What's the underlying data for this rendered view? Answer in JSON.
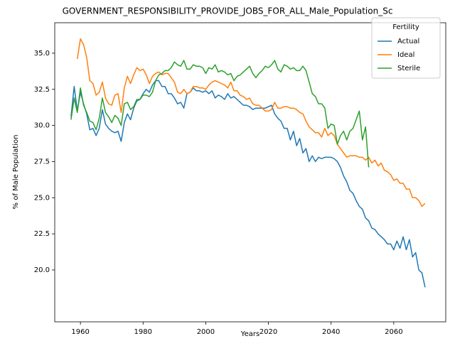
{
  "chart_data": {
    "type": "line",
    "title": "GOVERNMENT_RESPONSIBILITY_PROVIDE_JOBS_FOR_ALL_Male_Population_Sc",
    "xlabel": "Years",
    "ylabel": "% of Male Population",
    "legend_title": "Fertility",
    "legend": "upper right",
    "xlim": [
      1951.8,
      2076.6
    ],
    "ylim": [
      16.41,
      37.11
    ],
    "xticks": [
      1960,
      1980,
      2000,
      2020,
      2040,
      2060
    ],
    "yticks": [
      {
        "value": 20,
        "label": "20.0"
      },
      22.5,
      {
        "value": 25,
        "label": "25.0"
      },
      27.5,
      {
        "value": 30,
        "label": "30.0"
      },
      32.5,
      {
        "value": 35,
        "label": "35.0"
      }
    ],
    "series": [
      {
        "name": "Actual",
        "color": "#1f77b4",
        "x": [
          1957,
          1958,
          1959,
          1960,
          1961,
          1962,
          1963,
          1964,
          1965,
          1966,
          1967,
          1968,
          1969,
          1970,
          1971,
          1972,
          1973,
          1974,
          1975,
          1976,
          1977,
          1978,
          1979,
          1980,
          1981,
          1982,
          1983,
          1984,
          1985,
          1986,
          1987,
          1988,
          1989,
          1990,
          1991,
          1992,
          1993,
          1994,
          1995,
          1996,
          1997,
          1998,
          1999,
          2000,
          2001,
          2002,
          2003,
          2004,
          2005,
          2006,
          2007,
          2008,
          2009,
          2010,
          2011,
          2012,
          2013,
          2014,
          2015,
          2016,
          2017,
          2018,
          2019,
          2020,
          2021,
          2022,
          2023,
          2024,
          2025,
          2026,
          2027,
          2028,
          2029,
          2030,
          2031,
          2032,
          2033,
          2034,
          2035,
          2036,
          2037,
          2038,
          2039,
          2040,
          2041,
          2042,
          2043,
          2044,
          2045,
          2046,
          2047,
          2048,
          2049,
          2050,
          2051,
          2052,
          2053,
          2054,
          2055,
          2056,
          2057,
          2058,
          2059,
          2060,
          2061,
          2062,
          2063,
          2064,
          2065,
          2066,
          2067,
          2068,
          2069,
          2070
        ],
        "values": [
          30.6,
          32.7,
          31.0,
          32.3,
          31.5,
          30.8,
          29.7,
          29.8,
          29.3,
          29.8,
          31.1,
          30.1,
          29.8,
          29.6,
          29.5,
          29.6,
          28.9,
          30.2,
          30.8,
          30.4,
          31.2,
          31.7,
          31.8,
          32.2,
          32.5,
          32.3,
          32.8,
          33.1,
          33.1,
          32.7,
          32.7,
          32.2,
          32.2,
          31.9,
          31.5,
          31.6,
          31.2,
          32.2,
          32.3,
          32.6,
          32.4,
          32.4,
          32.3,
          32.4,
          32.2,
          32.4,
          31.9,
          32.1,
          32.0,
          31.8,
          32.2,
          31.9,
          32.0,
          31.8,
          31.6,
          31.4,
          31.4,
          31.3,
          31.1,
          31.2,
          31.2,
          31.2,
          31.2,
          31.3,
          31.4,
          30.8,
          30.5,
          30.3,
          29.8,
          29.8,
          29.0,
          29.6,
          28.6,
          29.1,
          28.1,
          28.4,
          27.5,
          27.9,
          27.5,
          27.8,
          27.7,
          27.8,
          27.8,
          27.8,
          27.7,
          27.5,
          27.1,
          26.5,
          26.1,
          25.5,
          25.3,
          24.8,
          24.4,
          24.2,
          23.6,
          23.4,
          22.9,
          22.8,
          22.5,
          22.3,
          22.1,
          21.8,
          21.8,
          21.4,
          22.0,
          21.5,
          22.3,
          21.4,
          22.1,
          20.9,
          21.2,
          20.0,
          19.8,
          18.8
        ]
      },
      {
        "name": "Ideal",
        "color": "#ff7f0e",
        "x": [
          1959,
          1960,
          1961,
          1962,
          1963,
          1964,
          1965,
          1966,
          1967,
          1968,
          1969,
          1970,
          1971,
          1972,
          1973,
          1974,
          1975,
          1976,
          1977,
          1978,
          1979,
          1980,
          1981,
          1982,
          1983,
          1984,
          1985,
          1986,
          1987,
          1988,
          1989,
          1990,
          1991,
          1992,
          1993,
          1994,
          1995,
          1996,
          1997,
          1998,
          1999,
          2000,
          2001,
          2002,
          2003,
          2004,
          2005,
          2006,
          2007,
          2008,
          2009,
          2010,
          2011,
          2012,
          2013,
          2014,
          2015,
          2016,
          2017,
          2018,
          2019,
          2020,
          2021,
          2022,
          2023,
          2024,
          2025,
          2026,
          2027,
          2028,
          2029,
          2030,
          2031,
          2032,
          2033,
          2034,
          2035,
          2036,
          2037,
          2038,
          2039,
          2040,
          2041,
          2042,
          2043,
          2044,
          2045,
          2046,
          2047,
          2048,
          2049,
          2050,
          2051,
          2052,
          2053,
          2054,
          2055,
          2056,
          2057,
          2058,
          2059,
          2060,
          2061,
          2062,
          2063,
          2064,
          2065,
          2066,
          2067,
          2068,
          2069,
          2070
        ],
        "values": [
          34.6,
          36.0,
          35.6,
          34.7,
          33.1,
          32.9,
          32.1,
          32.3,
          33.0,
          31.9,
          31.5,
          31.4,
          32.1,
          32.2,
          30.9,
          32.6,
          33.4,
          32.9,
          33.5,
          34.0,
          33.8,
          33.9,
          33.5,
          32.9,
          33.4,
          33.6,
          33.7,
          33.5,
          33.6,
          33.6,
          33.3,
          33.0,
          32.3,
          32.2,
          32.5,
          32.2,
          32.3,
          32.7,
          32.7,
          32.6,
          32.6,
          32.5,
          32.8,
          33.0,
          33.1,
          33.0,
          32.9,
          32.8,
          32.6,
          33.0,
          32.4,
          32.4,
          32.1,
          32.0,
          31.8,
          31.9,
          31.5,
          31.4,
          31.4,
          31.2,
          31.0,
          31.0,
          31.1,
          31.6,
          31.2,
          31.2,
          31.3,
          31.3,
          31.2,
          31.2,
          31.1,
          30.9,
          30.8,
          30.3,
          29.9,
          29.7,
          29.5,
          29.5,
          29.2,
          29.8,
          29.3,
          29.5,
          29.3,
          28.7,
          28.4,
          28.1,
          27.8,
          27.9,
          27.9,
          27.9,
          27.8,
          27.8,
          27.6,
          27.8,
          27.4,
          27.6,
          27.2,
          27.4,
          26.9,
          26.8,
          26.6,
          26.2,
          26.3,
          26.0,
          26.0,
          25.6,
          25.6,
          25.0,
          25.0,
          24.8,
          24.4,
          24.6
        ]
      },
      {
        "name": "Sterile",
        "color": "#2ca02c",
        "x": [
          1957,
          1958,
          1959,
          1960,
          1961,
          1962,
          1963,
          1964,
          1965,
          1966,
          1967,
          1968,
          1969,
          1970,
          1971,
          1972,
          1973,
          1974,
          1975,
          1976,
          1977,
          1978,
          1979,
          1980,
          1981,
          1982,
          1983,
          1984,
          1985,
          1986,
          1987,
          1988,
          1989,
          1990,
          1991,
          1992,
          1993,
          1994,
          1995,
          1996,
          1997,
          1998,
          1999,
          2000,
          2001,
          2002,
          2003,
          2004,
          2005,
          2006,
          2007,
          2008,
          2009,
          2010,
          2011,
          2012,
          2013,
          2014,
          2015,
          2016,
          2017,
          2018,
          2019,
          2020,
          2021,
          2022,
          2023,
          2024,
          2025,
          2026,
          2027,
          2028,
          2029,
          2030,
          2031,
          2032,
          2033,
          2034,
          2035,
          2036,
          2037,
          2038,
          2039,
          2040,
          2041,
          2042,
          2043,
          2044,
          2045,
          2046,
          2047,
          2048,
          2049,
          2050,
          2051,
          2052
        ],
        "values": [
          30.4,
          31.9,
          30.9,
          32.6,
          31.4,
          30.9,
          30.3,
          30.2,
          29.7,
          30.5,
          31.9,
          30.9,
          30.6,
          30.2,
          30.7,
          30.5,
          30.0,
          31.5,
          31.6,
          31.1,
          31.3,
          31.8,
          31.8,
          32.1,
          32.1,
          32.0,
          32.3,
          33.1,
          33.5,
          33.6,
          33.8,
          33.8,
          34.0,
          34.4,
          34.2,
          34.1,
          34.5,
          33.9,
          33.9,
          34.2,
          34.1,
          34.1,
          34.0,
          33.6,
          34.0,
          33.9,
          34.2,
          33.7,
          33.8,
          33.7,
          33.5,
          33.6,
          33.1,
          33.4,
          33.5,
          33.7,
          33.9,
          34.1,
          33.6,
          33.3,
          33.6,
          33.8,
          34.1,
          34.0,
          34.2,
          34.5,
          33.9,
          33.7,
          34.2,
          34.1,
          33.9,
          34.0,
          33.8,
          33.8,
          34.1,
          33.8,
          33.0,
          32.2,
          32.0,
          31.5,
          31.5,
          31.2,
          29.8,
          30.1,
          30.0,
          28.7,
          29.3,
          29.6,
          29.0,
          29.6,
          29.8,
          30.4,
          31.0,
          29.0,
          29.9,
          27.1
        ]
      }
    ]
  }
}
